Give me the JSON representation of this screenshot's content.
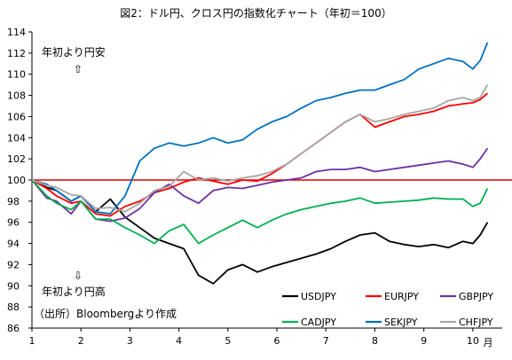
{
  "chart_data": {
    "type": "line",
    "title": "図2：ドル円、クロス円の指数化チャート（年初＝100）",
    "xlabel": "月",
    "ylabel": "",
    "x_ticks": [
      "1",
      "2",
      "3",
      "4",
      "5",
      "6",
      "7",
      "8",
      "9",
      "10"
    ],
    "xlim": [
      1,
      10.6
    ],
    "ylim": [
      86,
      114
    ],
    "y_ticks": [
      "86",
      "88",
      "90",
      "92",
      "94",
      "96",
      "98",
      "100",
      "102",
      "104",
      "106",
      "108",
      "110",
      "112",
      "114"
    ],
    "reference_line": {
      "value": 100,
      "color": "#e00000"
    },
    "grid": false,
    "legend_placement": "bottom-right",
    "annotations": {
      "weak_yen": "年初より円安",
      "up_arrow": "⇧",
      "down_arrow": "⇩",
      "strong_yen": "年初より円高",
      "source": "（出所）Bloombergより作成"
    },
    "x": [
      1.0,
      1.3,
      1.5,
      1.8,
      2.0,
      2.3,
      2.6,
      2.9,
      3.2,
      3.5,
      3.8,
      4.1,
      4.4,
      4.7,
      5.0,
      5.3,
      5.6,
      5.9,
      6.2,
      6.5,
      6.8,
      7.1,
      7.4,
      7.7,
      8.0,
      8.3,
      8.6,
      8.9,
      9.2,
      9.5,
      9.8,
      10.0,
      10.15,
      10.3
    ],
    "series": [
      {
        "name": "USDJPY",
        "color": "#000000",
        "values": [
          100.0,
          99.3,
          99.0,
          98.0,
          98.5,
          97.0,
          98.2,
          96.5,
          95.5,
          94.5,
          94.0,
          93.5,
          91.0,
          90.2,
          91.5,
          92.0,
          91.3,
          91.8,
          92.2,
          92.6,
          93.0,
          93.5,
          94.2,
          94.8,
          95.0,
          94.2,
          93.9,
          93.7,
          93.9,
          93.6,
          94.2,
          94.0,
          94.8,
          96.0
        ]
      },
      {
        "name": "EURJPY",
        "color": "#ff0000",
        "values": [
          100.0,
          99.2,
          98.5,
          97.8,
          98.0,
          96.8,
          96.6,
          97.5,
          98.0,
          98.8,
          99.2,
          99.8,
          100.2,
          99.9,
          99.6,
          100.0,
          99.9,
          100.6,
          101.5,
          102.5,
          103.5,
          104.5,
          105.5,
          106.2,
          105.0,
          105.5,
          106.0,
          106.2,
          106.5,
          107.0,
          107.2,
          107.3,
          107.6,
          108.2
        ]
      },
      {
        "name": "GBPJPY",
        "color": "#7030a0",
        "values": [
          100.0,
          98.3,
          98.0,
          96.8,
          98.0,
          96.3,
          96.1,
          96.4,
          97.3,
          98.8,
          99.6,
          98.5,
          97.8,
          99.0,
          99.3,
          99.2,
          99.5,
          99.8,
          100.0,
          100.2,
          100.8,
          101.0,
          101.0,
          101.2,
          100.8,
          101.0,
          101.2,
          101.4,
          101.6,
          101.8,
          101.5,
          101.2,
          102.0,
          103.0
        ]
      },
      {
        "name": "CADJPY",
        "color": "#00b050",
        "values": [
          100.0,
          98.5,
          97.8,
          97.2,
          98.0,
          96.3,
          96.3,
          95.5,
          94.8,
          94.0,
          95.2,
          95.8,
          94.0,
          94.8,
          95.5,
          96.2,
          95.5,
          96.2,
          96.8,
          97.2,
          97.5,
          97.8,
          98.0,
          98.3,
          97.8,
          97.9,
          98.0,
          98.1,
          98.3,
          98.2,
          98.2,
          97.5,
          97.8,
          99.2
        ]
      },
      {
        "name": "SEKJPY",
        "color": "#0070c0",
        "values": [
          100.0,
          99.6,
          99.0,
          98.0,
          98.5,
          97.0,
          96.8,
          98.5,
          101.8,
          103.0,
          103.5,
          103.2,
          103.5,
          104.0,
          103.5,
          103.8,
          104.8,
          105.5,
          106.0,
          106.8,
          107.5,
          107.8,
          108.2,
          108.5,
          108.5,
          109.0,
          109.5,
          110.5,
          111.0,
          111.5,
          111.2,
          110.5,
          111.3,
          113.0
        ]
      },
      {
        "name": "CHFJPY",
        "color": "#a6a6a6",
        "values": [
          100.0,
          99.5,
          99.3,
          98.6,
          98.5,
          97.3,
          97.4,
          97.0,
          97.8,
          99.0,
          99.4,
          100.8,
          100.0,
          100.2,
          99.9,
          100.2,
          100.4,
          100.8,
          101.5,
          102.5,
          103.5,
          104.5,
          105.5,
          106.2,
          105.5,
          105.8,
          106.2,
          106.5,
          106.8,
          107.5,
          107.8,
          107.5,
          107.8,
          109.0
        ]
      }
    ]
  }
}
